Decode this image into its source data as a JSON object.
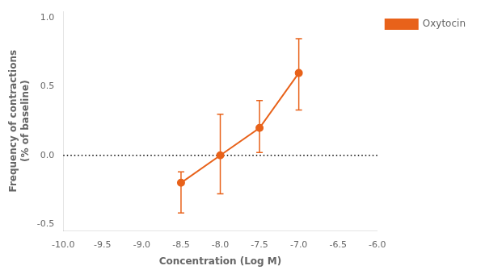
{
  "chart_data": {
    "type": "line",
    "x_label": "Concentration (Log M)",
    "y_label": "Frequency of contractions\n(% of baseline)",
    "x": [
      -8.5,
      -8.0,
      -7.5,
      -7.0
    ],
    "series": [
      {
        "name": "Oxytocin",
        "color": "#E8621A",
        "marker": "circle",
        "line_style": "solid",
        "values": [
          -0.2,
          0.0,
          0.2,
          0.6
        ],
        "yerr_lower": [
          0.22,
          0.28,
          0.18,
          0.27
        ],
        "yerr_upper": [
          0.08,
          0.3,
          0.2,
          0.25
        ]
      }
    ],
    "xlim": [
      -10.0,
      -6.0
    ],
    "ylim": [
      -0.55,
      1.05
    ],
    "xticks": [
      {
        "value": -10.0,
        "label": "-10.0"
      },
      -9.5,
      {
        "value": -9.0,
        "label": "-9.0"
      },
      -8.5,
      {
        "value": -8.0,
        "label": "-8.0"
      },
      -7.5,
      {
        "value": -7.0,
        "label": "-7.0"
      },
      -6.5,
      {
        "value": -6.0,
        "label": "-6.0"
      }
    ],
    "yticks": [
      -0.5,
      {
        "value": 0.0,
        "label": "0.0"
      },
      0.5,
      {
        "value": 1.0,
        "label": "1.0"
      }
    ],
    "hline": {
      "y": 0.0,
      "color": "#000000",
      "line_style": "dotted"
    },
    "grid": false,
    "legend": "right"
  }
}
